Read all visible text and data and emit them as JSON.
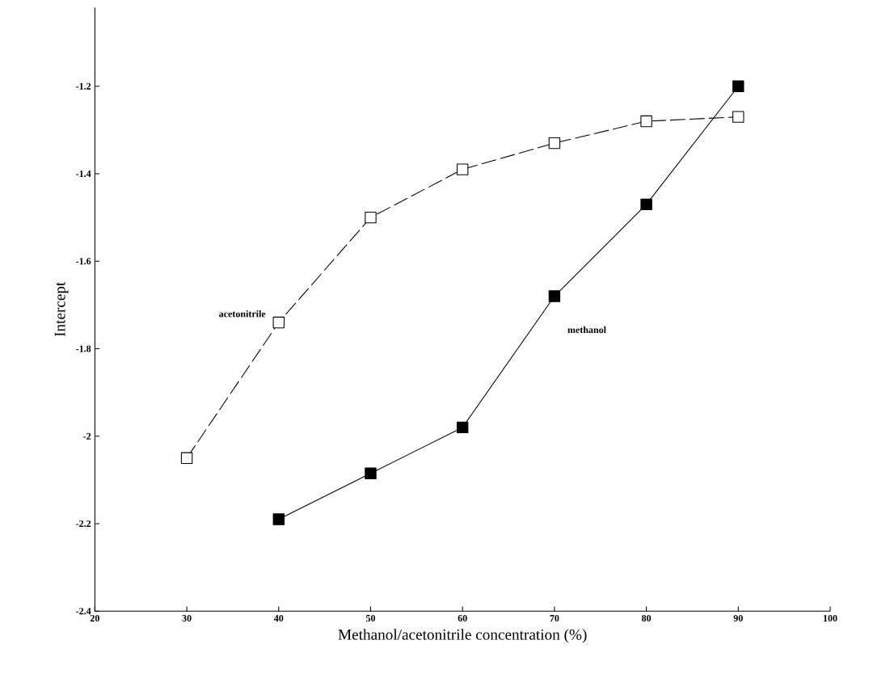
{
  "chart_data": {
    "type": "line",
    "xlabel": "Methanol/acetonitrile concentration (%)",
    "ylabel": "Intercept",
    "xlim": [
      20,
      100
    ],
    "ylim": [
      -2.4,
      -1.02
    ],
    "xticks": [
      20,
      30,
      40,
      50,
      60,
      70,
      80,
      90,
      100
    ],
    "yticks": [
      -2.4,
      -2.2,
      -2,
      -1.8,
      -1.6,
      -1.4,
      -1.2
    ],
    "grid": false,
    "marker": "square",
    "series": [
      {
        "name": "acetonitrile",
        "color": "#000000",
        "x": [
          30,
          40,
          50,
          60,
          70,
          80,
          90
        ],
        "values": [
          -2.05,
          -1.74,
          -1.5,
          -1.39,
          -1.33,
          -1.28,
          -1.27
        ],
        "line_style": "dashed"
      },
      {
        "name": "methanol",
        "color": "#000000",
        "x": [
          40,
          50,
          60,
          70,
          80,
          90
        ],
        "values": [
          -2.19,
          -2.085,
          -1.98,
          -1.68,
          -1.47,
          -1.2
        ],
        "line_style": "solid"
      }
    ]
  }
}
